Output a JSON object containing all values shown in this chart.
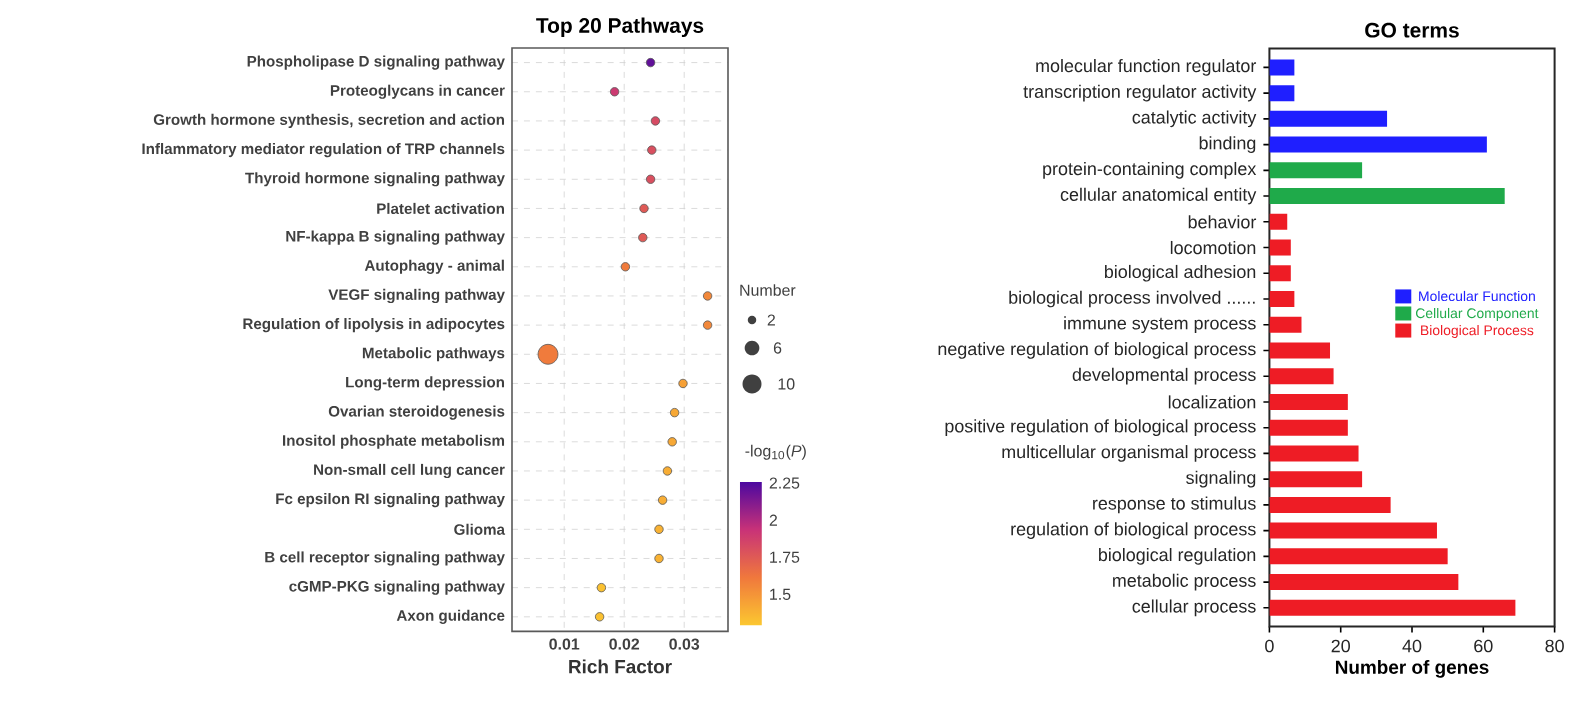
{
  "chart_data": [
    {
      "type": "bubble",
      "orientation": "horizontal",
      "title": "Top 20 Pathways",
      "xlabel": "Rich Factor",
      "categories": [
        "Phospholipase D signaling pathway",
        "Proteoglycans in cancer",
        "Growth hormone synthesis, secretion and action",
        "Inflammatory mediator regulation of TRP channels",
        "Thyroid hormone signaling pathway",
        "Platelet activation",
        "NF-kappa B signaling pathway",
        "Autophagy - animal",
        "VEGF signaling pathway",
        "Regulation of lipolysis in adipocytes",
        "Metabolic pathways",
        "Long-term depression",
        "Ovarian steroidogenesis",
        "Inositol phosphate metabolism",
        "Non-small cell lung cancer",
        "Fc epsilon RI signaling pathway",
        "Glioma",
        "B cell receptor signaling pathway",
        "cGMP-PKG signaling pathway",
        "Axon guidance"
      ],
      "values": [
        0.0244,
        0.0184,
        0.0252,
        0.0246,
        0.0244,
        0.0233,
        0.0231,
        0.0202,
        0.0339,
        0.0339,
        0.0073,
        0.0298,
        0.0284,
        0.028,
        0.0272,
        0.0264,
        0.0258,
        0.0258,
        0.0162,
        0.0159
      ],
      "sizes": [
        2,
        2,
        2,
        2,
        2,
        2,
        2,
        2,
        2,
        2,
        11,
        2,
        2,
        2,
        2,
        2,
        2,
        2,
        2,
        2
      ],
      "cvalues": [
        2.2,
        1.9,
        1.82,
        1.8,
        1.8,
        1.75,
        1.75,
        1.6,
        1.55,
        1.55,
        1.6,
        1.45,
        1.42,
        1.42,
        1.4,
        1.4,
        1.38,
        1.38,
        1.32,
        1.32
      ],
      "size_legend": [
        2,
        6,
        10
      ],
      "legend_title": "Number",
      "clabel": "-log$_{10}$(*P*)",
      "clim": [
        1.29,
        2.26
      ],
      "cticks": [
        1.5,
        1.75,
        2,
        2.25
      ],
      "xlim": [
        0.0013,
        0.0373
      ],
      "xticks": [
        0.01,
        0.02,
        0.03
      ],
      "grid": true
    },
    {
      "type": "bar",
      "orientation": "horizontal",
      "title": "GO terms",
      "xlabel": "Number of genes",
      "categories": [
        "molecular function regulator",
        "transcription regulator activity",
        "catalytic activity",
        "binding",
        "protein-containing complex",
        "cellular anatomical entity",
        "behavior",
        "locomotion",
        "biological adhesion",
        "biological process involved ......",
        "immune system process",
        "negative regulation of biological process",
        "developmental process",
        "localization",
        "positive regulation of biological process",
        "multicellular organismal process",
        "signaling",
        "response to stimulus",
        "regulation of biological process",
        "biological regulation",
        "metabolic process",
        "cellular process"
      ],
      "series": [
        {
          "name": "Molecular Function",
          "color": "#1f1fff",
          "values": [
            7,
            7,
            33,
            61,
            null,
            null,
            null,
            null,
            null,
            null,
            null,
            null,
            null,
            null,
            null,
            null,
            null,
            null,
            null,
            null,
            null,
            null
          ]
        },
        {
          "name": "Cellular Component",
          "color": "#1faa4a",
          "values": [
            null,
            null,
            null,
            null,
            26,
            66,
            null,
            null,
            null,
            null,
            null,
            null,
            null,
            null,
            null,
            null,
            null,
            null,
            null,
            null,
            null,
            null
          ]
        },
        {
          "name": "Biological Process",
          "color": "#ee1c25",
          "values": [
            null,
            null,
            null,
            null,
            null,
            null,
            5,
            6,
            6,
            7,
            9,
            17,
            18,
            22,
            22,
            25,
            26,
            34,
            47,
            50,
            53,
            69
          ]
        }
      ],
      "xlim": [
        0,
        80
      ],
      "xticks": [
        0,
        20,
        40,
        60,
        80
      ],
      "legend": "right"
    }
  ]
}
